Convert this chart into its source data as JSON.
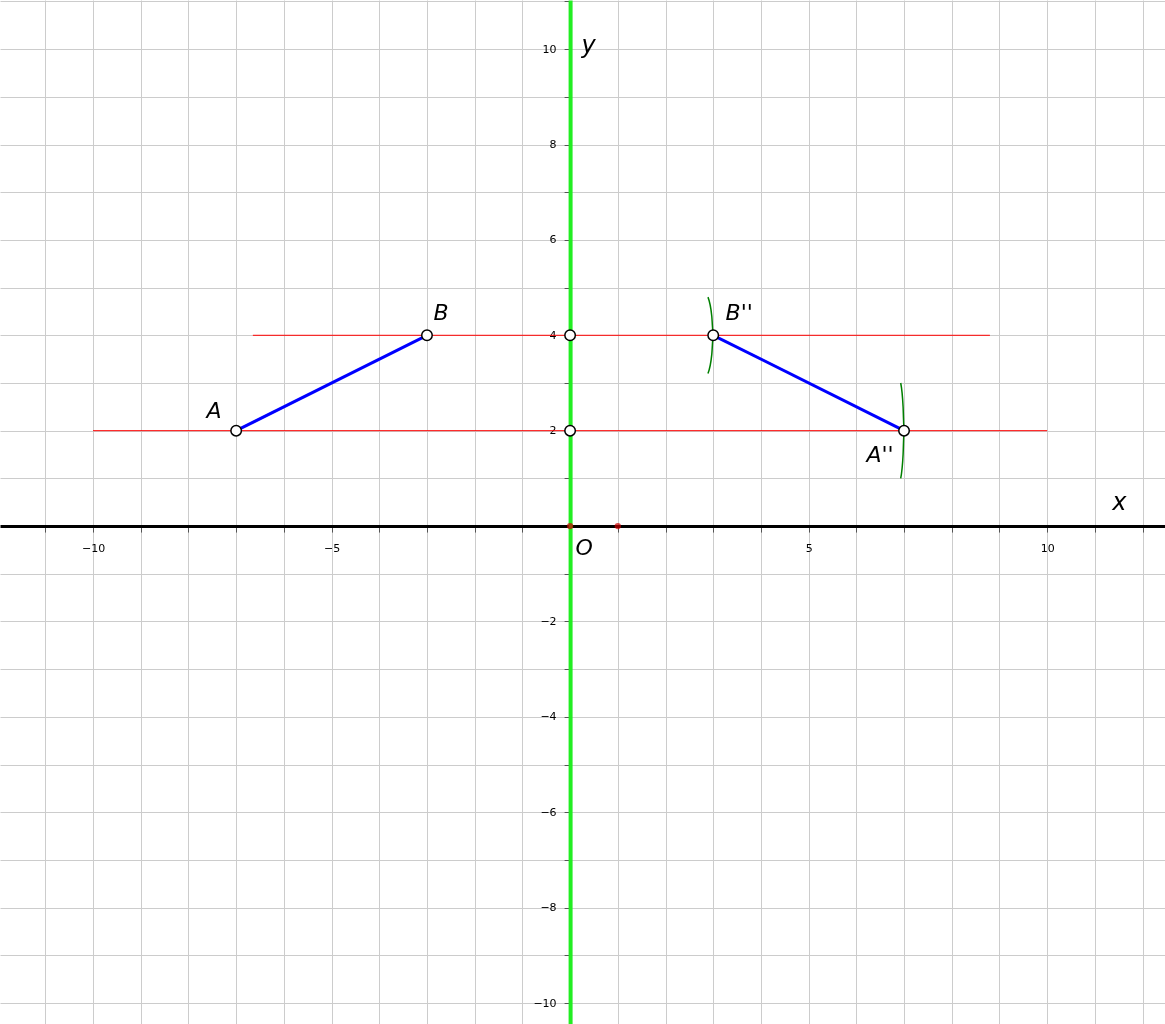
{
  "chart_data": {
    "type": "line",
    "xlabel": "x",
    "ylabel": "y",
    "xlim": [
      -11.95,
      12.47
    ],
    "ylim": [
      -10.44,
      11.03
    ],
    "xticks": [
      {
        "value": -11,
        "label": null
      },
      -10,
      {
        "value": -9,
        "label": null
      },
      {
        "value": -8,
        "label": null
      },
      {
        "value": -7,
        "label": null
      },
      {
        "value": -6,
        "label": null
      },
      -5,
      {
        "value": -4,
        "label": null
      },
      {
        "value": -3,
        "label": null
      },
      {
        "value": -2,
        "label": null
      },
      {
        "value": -1,
        "label": null
      },
      {
        "value": 1,
        "label": null
      },
      {
        "value": 2,
        "label": null
      },
      {
        "value": 3,
        "label": null
      },
      {
        "value": 4,
        "label": null
      },
      5,
      {
        "value": 6,
        "label": null
      },
      {
        "value": 7,
        "label": null
      },
      {
        "value": 8,
        "label": null
      },
      {
        "value": 9,
        "label": null
      },
      10,
      {
        "value": 11,
        "label": null
      },
      {
        "value": 12,
        "label": null
      }
    ],
    "yticks": [
      -10,
      {
        "value": -9,
        "label": null
      },
      -8,
      {
        "value": -7,
        "label": null
      },
      -6,
      {
        "value": -5,
        "label": null
      },
      -4,
      {
        "value": -3,
        "label": null
      },
      -2,
      {
        "value": -1,
        "label": null
      },
      {
        "value": 1,
        "label": null
      },
      2,
      {
        "value": 3,
        "label": null
      },
      4,
      {
        "value": 5,
        "label": null
      },
      6,
      {
        "value": 7,
        "label": null
      },
      8,
      {
        "value": 9,
        "label": null
      },
      10,
      {
        "value": 11,
        "label": null
      }
    ],
    "grid": true,
    "series": [
      {
        "x": [
          -10,
          10
        ],
        "values": [
          2,
          2
        ],
        "color": "#ff0000"
      },
      {
        "x": [
          -6.65,
          8.8
        ],
        "values": [
          4,
          4
        ],
        "color": "#ff0000"
      },
      {
        "x": [
          -7,
          -3
        ],
        "values": [
          2,
          4
        ],
        "color": "#0000ff"
      },
      {
        "x": [
          3,
          7
        ],
        "values": [
          4,
          2
        ],
        "color": "#0000ff"
      },
      {
        "x": [
          2.89,
          2.97,
          3,
          2.97,
          2.89
        ],
        "values": [
          4.8,
          4.4,
          4,
          3.6,
          3.2
        ],
        "color": "#007f00"
      },
      {
        "x": [
          6.93,
          6.98,
          7,
          6.98,
          6.93
        ],
        "values": [
          3,
          2.5,
          2,
          1.5,
          1
        ],
        "color": "#007f00"
      },
      {
        "type": "scatter",
        "x": [
          -7,
          -3,
          3,
          7,
          0,
          0
        ],
        "values": [
          2,
          4,
          4,
          2,
          4,
          2
        ],
        "color": "#000000",
        "marker": "circle"
      },
      {
        "type": "scatter",
        "x": [
          0,
          1
        ],
        "values": [
          0,
          0
        ],
        "color": "#cc0000",
        "marker": "circle"
      }
    ],
    "annotations": [
      {
        "text": "A",
        "x": -7,
        "y": 2
      },
      {
        "text": "B",
        "x": -3,
        "y": 4
      },
      {
        "text": "B''",
        "x": 3,
        "y": 4
      },
      {
        "text": "A''",
        "x": 7,
        "y": 2
      },
      {
        "text": "O",
        "x": 0,
        "y": 0
      }
    ]
  }
}
